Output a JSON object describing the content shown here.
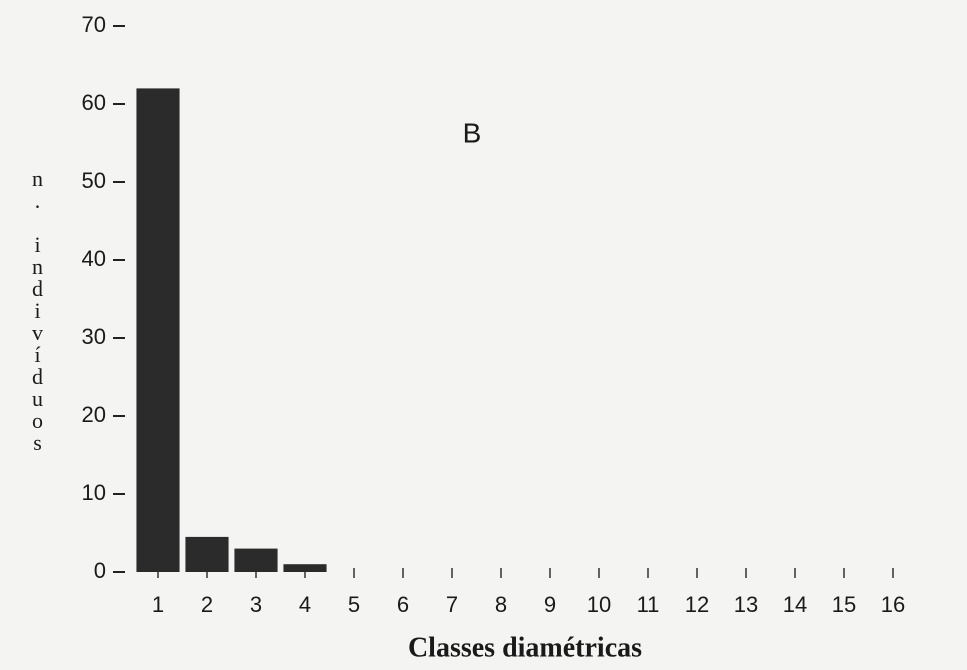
{
  "chart_data": {
    "type": "bar",
    "annotation": "B",
    "xlabel": "Classes diamétricas",
    "ylabel": "n. indivíduos",
    "categories": [
      "1",
      "2",
      "3",
      "4",
      "5",
      "6",
      "7",
      "8",
      "9",
      "10",
      "11",
      "12",
      "13",
      "14",
      "15",
      "16"
    ],
    "values": [
      62,
      4.5,
      3,
      1,
      0,
      0,
      0,
      0,
      0,
      0,
      0,
      0,
      0,
      0,
      0,
      0
    ],
    "color": "#2b2b2b",
    "ylim": [
      0,
      70
    ],
    "yticks": [
      0,
      10,
      20,
      30,
      40,
      50,
      60,
      70
    ],
    "grid": false
  }
}
